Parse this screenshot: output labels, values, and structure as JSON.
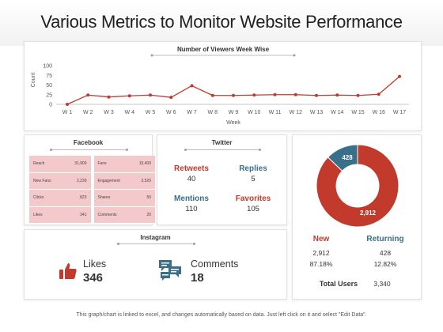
{
  "page_title": "Various Metrics to Monitor Website Performance",
  "footer_note": "This graph/chart is linked to excel, and changes automatically based on data. Just left click on it and select \"Edit Data\".",
  "colors": {
    "red": "#c23a2b",
    "blue": "#3a6f8a",
    "pink": "#f3c9cb"
  },
  "chart_data": [
    {
      "type": "line",
      "title": "Number of Viewers Week Wise",
      "xlabel": "Week",
      "ylabel": "Count",
      "categories": [
        "W 1",
        "W 2",
        "W 3",
        "W 4",
        "W 5",
        "W 6",
        "W 7",
        "W 8",
        "W 9",
        "W 10",
        "W 11",
        "W 12",
        "W 13",
        "W 14",
        "W 15",
        "W 16",
        "W 17"
      ],
      "y_ticks": [
        "0",
        "25",
        "50",
        "75",
        "100"
      ],
      "ylim": [
        0,
        100
      ],
      "series": [
        {
          "name": "",
          "color": "#c23a2b",
          "values": [
            0,
            24,
            19,
            22,
            24,
            18,
            48,
            23,
            23,
            24,
            25,
            25,
            23,
            24,
            23,
            26,
            72
          ]
        }
      ]
    },
    {
      "type": "pie",
      "title": "",
      "slices": [
        {
          "label": "New",
          "value": 2912,
          "value_label": "2,912",
          "color": "#c23a2b"
        },
        {
          "label": "Returning",
          "value": 428,
          "value_label": "428",
          "color": "#3a6f8a"
        }
      ]
    }
  ],
  "facebook": {
    "title": "Facebook",
    "left": [
      {
        "label": "Reach",
        "value": "31,909"
      },
      {
        "label": "New Fans",
        "value": "2,239"
      },
      {
        "label": "Clicks",
        "value": "823"
      },
      {
        "label": "Likes",
        "value": "341"
      }
    ],
    "right": [
      {
        "label": "Fans",
        "value": "15,400"
      },
      {
        "label": "Engagement",
        "value": "2,520"
      },
      {
        "label": "Shares",
        "value": "50"
      },
      {
        "label": "Comments",
        "value": "20"
      }
    ]
  },
  "twitter": {
    "title": "Twitter",
    "retweets": {
      "label": "Retweets",
      "value": "40"
    },
    "replies": {
      "label": "Replies",
      "value": "5"
    },
    "mentions": {
      "label": "Mentions",
      "value": "110"
    },
    "favorites": {
      "label": "Favorites",
      "value": "105"
    }
  },
  "instagram": {
    "title": "Instagram",
    "likes": {
      "label": "Likes",
      "value": "346",
      "icon": "thumbs-up-icon"
    },
    "comments": {
      "label": "Comments",
      "value": "18",
      "icon": "comments-icon"
    }
  },
  "users": {
    "new": {
      "label": "New",
      "count": "2,912",
      "percent": "87.18%"
    },
    "returning": {
      "label": "Returning",
      "count": "428",
      "percent": "12.82%"
    },
    "total_label": "Total Users",
    "total_value": "3,340"
  }
}
